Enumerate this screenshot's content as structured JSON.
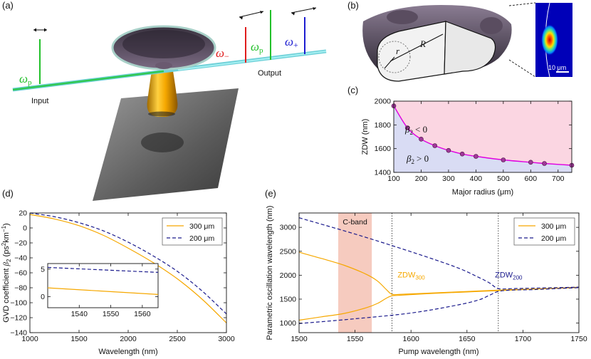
{
  "panels": {
    "a": {
      "label": "(a)",
      "omega_p_left": "ω",
      "omega_p_left_sub": "p",
      "omega_minus": "ω",
      "omega_minus_sub": "−",
      "omega_p_right": "ω",
      "omega_p_right_sub": "p",
      "omega_plus": "ω",
      "omega_plus_sub": "+",
      "input_label": "Input",
      "output_label": "Output"
    },
    "b": {
      "label": "(b)",
      "minor_radius": "r",
      "major_radius": "R",
      "scalebar_label": "10 μm"
    }
  },
  "colors": {
    "pump_green": "#22c02a",
    "idler_red": "#e01c1c",
    "signal_blue": "#1c1cd0",
    "curve_orange": "#f6a800",
    "curve_navy": "#1a1a8c",
    "magenta": "#e000e0",
    "marker": "#a0399a",
    "region_pink": "#fbd6e2",
    "region_blue": "#d9dcf4",
    "cband": "#f6cbbf"
  },
  "chart_data": [
    {
      "id": "c",
      "panel_label": "(c)",
      "type": "scatter",
      "xlabel": "Major radius (μm)",
      "ylabel": "ZDW (nm)",
      "xlim": [
        100,
        750
      ],
      "ylim": [
        1400,
        2000
      ],
      "xticks": [
        100,
        200,
        300,
        400,
        500,
        600,
        700
      ],
      "yticks": [
        1400,
        1600,
        1800,
        2000
      ],
      "x": [
        100,
        150,
        200,
        250,
        300,
        350,
        400,
        500,
        600,
        650,
        750
      ],
      "y": [
        1960,
        1775,
        1680,
        1625,
        1585,
        1555,
        1535,
        1505,
        1485,
        1475,
        1460
      ],
      "region_labels": {
        "upper": "β",
        "upper_rest": "< 0",
        "lower": "β",
        "lower_rest": "> 0",
        "sub": "2"
      }
    },
    {
      "id": "d",
      "panel_label": "(d)",
      "type": "line",
      "xlabel": "Wavelength (nm)",
      "ylabel_main": "GVD coefficient ",
      "ylabel_beta": "β",
      "ylabel_sub": "2",
      "ylabel_unit": " (ps",
      "ylabel_sup1": "2",
      "ylabel_mid": "km",
      "ylabel_sup2": "−1",
      "ylabel_close": ")",
      "xlim": [
        1000,
        3000
      ],
      "ylim": [
        -140,
        20
      ],
      "xticks": [
        1000,
        1500,
        2000,
        2500,
        3000
      ],
      "yticks": [
        20,
        0,
        -20,
        -40,
        -60,
        -80,
        -100,
        -120,
        -140
      ],
      "series": [
        {
          "name": "300 μm",
          "style": "solid",
          "x": [
            1000,
            1250,
            1500,
            1750,
            2000,
            2250,
            2500,
            2750,
            3000
          ],
          "y": [
            18,
            12,
            3,
            -10,
            -27,
            -46,
            -68,
            -95,
            -127
          ]
        },
        {
          "name": "200 μm",
          "style": "dashed",
          "x": [
            1000,
            1250,
            1500,
            1750,
            2000,
            2250,
            2500,
            2750,
            3000
          ],
          "y": [
            20,
            15,
            7,
            -4,
            -19,
            -37,
            -58,
            -84,
            -115
          ]
        }
      ],
      "inset": {
        "xlim": [
          1530,
          1565
        ],
        "ylim": [
          -2,
          6
        ],
        "xticks": [
          1540,
          1550,
          1560
        ],
        "yticks": [
          0,
          5
        ],
        "series": [
          {
            "name": "300 μm",
            "style": "solid",
            "x": [
              1530,
              1565
            ],
            "y": [
              1.6,
              0.4
            ]
          },
          {
            "name": "200 μm",
            "style": "dashed",
            "x": [
              1530,
              1565
            ],
            "y": [
              5.3,
              4.4
            ]
          }
        ]
      }
    },
    {
      "id": "e",
      "panel_label": "(e)",
      "type": "line",
      "xlabel": "Pump wavelength (nm)",
      "ylabel": "Parametric oscillation wavelength (nm)",
      "xlim": [
        1500,
        1750
      ],
      "ylim": [
        800,
        3300
      ],
      "xticks": [
        1500,
        1550,
        1600,
        1650,
        1700,
        1750
      ],
      "yticks": [
        1000,
        1500,
        2000,
        2500,
        3000
      ],
      "cband": {
        "label": "C-band",
        "range": [
          1535,
          1565
        ]
      },
      "vlines": [
        1583,
        1678
      ],
      "annotations": [
        {
          "text": "ZDW",
          "sub": "300",
          "x": 1588,
          "y": 1950
        },
        {
          "text": "ZDW",
          "sub": "200",
          "x": 1675,
          "y": 1950
        }
      ],
      "series": [
        {
          "name": "300 μm",
          "style": "solid",
          "branch": "upper",
          "x": [
            1500,
            1520,
            1540,
            1560,
            1570,
            1578,
            1583,
            1590,
            1620,
            1650,
            1680,
            1700,
            1750
          ],
          "y": [
            2480,
            2350,
            2210,
            2020,
            1880,
            1700,
            1600,
            1600,
            1630,
            1660,
            1690,
            1705,
            1740
          ]
        },
        {
          "name": "300 μm",
          "style": "solid",
          "branch": "lower",
          "x": [
            1500,
            1520,
            1540,
            1560,
            1570,
            1578,
            1583,
            1590,
            1620,
            1650,
            1680,
            1700,
            1750
          ],
          "y": [
            1060,
            1130,
            1200,
            1320,
            1410,
            1520,
            1570,
            1580,
            1620,
            1650,
            1680,
            1700,
            1750
          ]
        },
        {
          "name": "200 μm",
          "style": "dashed",
          "branch": "upper",
          "x": [
            1500,
            1550,
            1600,
            1640,
            1660,
            1670,
            1678,
            1690,
            1710,
            1750
          ],
          "y": [
            3200,
            2860,
            2490,
            2170,
            1960,
            1840,
            1720,
            1720,
            1730,
            1750
          ]
        },
        {
          "name": "200 μm",
          "style": "dashed",
          "branch": "lower",
          "x": [
            1500,
            1550,
            1600,
            1640,
            1660,
            1670,
            1678,
            1690,
            1710,
            1750
          ],
          "y": [
            990,
            1090,
            1210,
            1370,
            1480,
            1580,
            1660,
            1690,
            1700,
            1740
          ]
        }
      ]
    }
  ]
}
